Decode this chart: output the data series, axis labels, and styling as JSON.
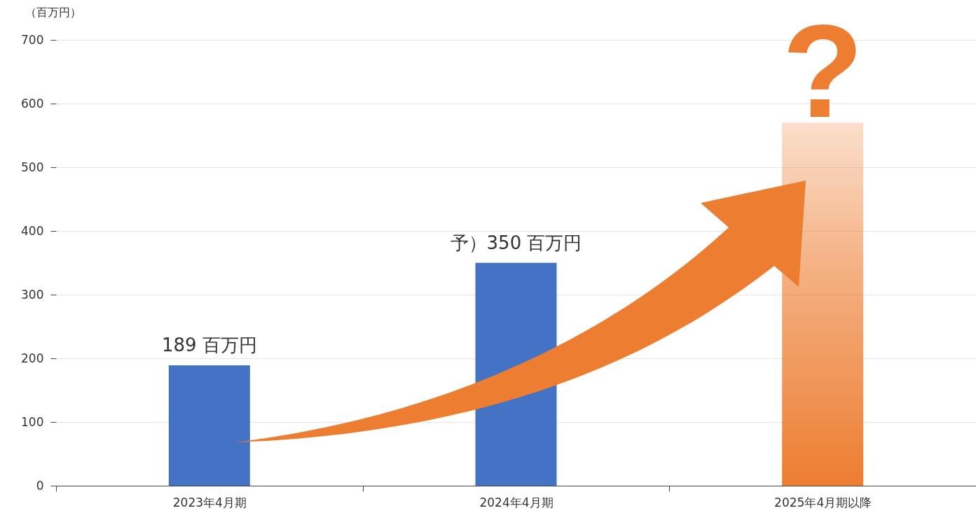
{
  "chart_data": {
    "type": "bar",
    "ylabel": "（百万円）",
    "categories": [
      "2023年4月期",
      "2024年4月期",
      "2025年4月期以降"
    ],
    "values": [
      189,
      350,
      570
    ],
    "colors": [
      "#4472c4",
      "#4472c4",
      "#ed7d31"
    ],
    "value_labels": [
      "189 百万円",
      "予）350 百万円",
      null
    ],
    "annotations": [
      "?"
    ],
    "ylim": [
      0,
      700
    ],
    "yticks": [
      0,
      100,
      200,
      300,
      400,
      500,
      600,
      700
    ],
    "grid": "y"
  }
}
